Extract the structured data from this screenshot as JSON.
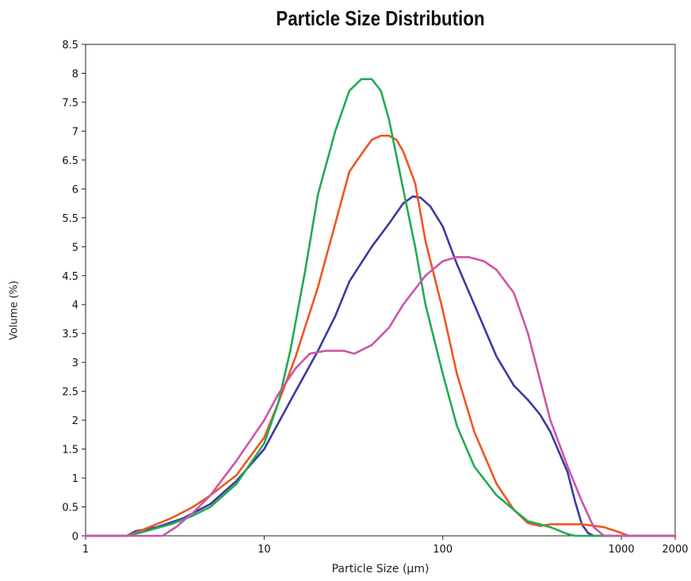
{
  "chart_data": {
    "type": "line",
    "title": "Particle Size Distribution",
    "xlabel": "Particle Size (µm)",
    "ylabel": "Volume (%)",
    "xscale": "log",
    "xlim": [
      1,
      2000
    ],
    "ylim": [
      0,
      8.5
    ],
    "xticks": [
      1,
      10,
      100,
      1000,
      2000
    ],
    "xtick_labels": [
      "1",
      "10",
      "100",
      "1000",
      "2000"
    ],
    "yticks": [
      0,
      0.5,
      1,
      1.5,
      2,
      2.5,
      3,
      3.5,
      4,
      4.5,
      5,
      5.5,
      6,
      6.5,
      7,
      7.5,
      8,
      8.5
    ],
    "ytick_labels": [
      "0",
      "0.5",
      "1",
      "1.5",
      "2",
      "2.5",
      "3",
      "3.5",
      "4",
      "4.5",
      "5",
      "5.5",
      "6",
      "6.5",
      "7",
      "7.5",
      "8",
      "8.5"
    ],
    "grid": false,
    "legend": "none",
    "series": [
      {
        "color": "#3a3aa0",
        "points": [
          [
            1,
            0
          ],
          [
            1.7,
            0
          ],
          [
            1.9,
            0.08
          ],
          [
            2.5,
            0.15
          ],
          [
            3.5,
            0.3
          ],
          [
            5,
            0.55
          ],
          [
            7,
            0.95
          ],
          [
            10,
            1.5
          ],
          [
            12,
            1.95
          ],
          [
            15,
            2.5
          ],
          [
            20,
            3.2
          ],
          [
            25,
            3.8
          ],
          [
            30,
            4.4
          ],
          [
            40,
            5.0
          ],
          [
            50,
            5.4
          ],
          [
            60,
            5.75
          ],
          [
            68,
            5.87
          ],
          [
            75,
            5.85
          ],
          [
            85,
            5.7
          ],
          [
            100,
            5.35
          ],
          [
            120,
            4.7
          ],
          [
            150,
            4.0
          ],
          [
            200,
            3.1
          ],
          [
            250,
            2.6
          ],
          [
            300,
            2.35
          ],
          [
            350,
            2.1
          ],
          [
            400,
            1.8
          ],
          [
            500,
            1.1
          ],
          [
            550,
            0.6
          ],
          [
            600,
            0.2
          ],
          [
            650,
            0.05
          ],
          [
            700,
            0
          ],
          [
            2000,
            0
          ]
        ]
      },
      {
        "color": "#ee5522",
        "points": [
          [
            1,
            0
          ],
          [
            1.7,
            0
          ],
          [
            2,
            0.08
          ],
          [
            3,
            0.3
          ],
          [
            4,
            0.5
          ],
          [
            5,
            0.7
          ],
          [
            7,
            1.05
          ],
          [
            10,
            1.7
          ],
          [
            12,
            2.3
          ],
          [
            15,
            3.1
          ],
          [
            20,
            4.3
          ],
          [
            25,
            5.4
          ],
          [
            30,
            6.3
          ],
          [
            35,
            6.6
          ],
          [
            40,
            6.85
          ],
          [
            45,
            6.92
          ],
          [
            50,
            6.92
          ],
          [
            55,
            6.85
          ],
          [
            60,
            6.65
          ],
          [
            70,
            6.1
          ],
          [
            80,
            5.1
          ],
          [
            100,
            3.9
          ],
          [
            120,
            2.8
          ],
          [
            150,
            1.8
          ],
          [
            200,
            0.9
          ],
          [
            250,
            0.45
          ],
          [
            300,
            0.22
          ],
          [
            350,
            0.17
          ],
          [
            400,
            0.2
          ],
          [
            500,
            0.2
          ],
          [
            600,
            0.2
          ],
          [
            800,
            0.15
          ],
          [
            1000,
            0.05
          ],
          [
            1100,
            0
          ],
          [
            2000,
            0
          ]
        ]
      },
      {
        "color": "#22aa55",
        "points": [
          [
            1,
            0
          ],
          [
            1.7,
            0
          ],
          [
            2,
            0.05
          ],
          [
            3,
            0.2
          ],
          [
            4,
            0.35
          ],
          [
            5,
            0.5
          ],
          [
            7,
            0.9
          ],
          [
            10,
            1.6
          ],
          [
            12,
            2.3
          ],
          [
            14,
            3.2
          ],
          [
            17,
            4.6
          ],
          [
            20,
            5.9
          ],
          [
            25,
            7.0
          ],
          [
            30,
            7.7
          ],
          [
            35,
            7.9
          ],
          [
            40,
            7.9
          ],
          [
            45,
            7.7
          ],
          [
            50,
            7.2
          ],
          [
            60,
            6.0
          ],
          [
            70,
            5.0
          ],
          [
            80,
            4.0
          ],
          [
            100,
            2.8
          ],
          [
            120,
            1.9
          ],
          [
            150,
            1.2
          ],
          [
            200,
            0.7
          ],
          [
            250,
            0.45
          ],
          [
            300,
            0.25
          ],
          [
            350,
            0.2
          ],
          [
            400,
            0.15
          ],
          [
            500,
            0.03
          ],
          [
            550,
            0
          ],
          [
            2000,
            0
          ]
        ]
      },
      {
        "color": "#cc55aa",
        "points": [
          [
            1,
            0
          ],
          [
            2.7,
            0
          ],
          [
            3.2,
            0.15
          ],
          [
            4,
            0.4
          ],
          [
            5,
            0.7
          ],
          [
            7,
            1.3
          ],
          [
            10,
            2.0
          ],
          [
            12,
            2.45
          ],
          [
            15,
            2.9
          ],
          [
            18,
            3.15
          ],
          [
            22,
            3.2
          ],
          [
            28,
            3.2
          ],
          [
            32,
            3.15
          ],
          [
            40,
            3.3
          ],
          [
            50,
            3.6
          ],
          [
            60,
            4.0
          ],
          [
            80,
            4.5
          ],
          [
            100,
            4.75
          ],
          [
            120,
            4.82
          ],
          [
            140,
            4.82
          ],
          [
            170,
            4.75
          ],
          [
            200,
            4.6
          ],
          [
            250,
            4.2
          ],
          [
            300,
            3.5
          ],
          [
            350,
            2.7
          ],
          [
            400,
            2.0
          ],
          [
            500,
            1.2
          ],
          [
            600,
            0.6
          ],
          [
            700,
            0.15
          ],
          [
            800,
            0
          ],
          [
            2000,
            0
          ]
        ]
      }
    ]
  }
}
